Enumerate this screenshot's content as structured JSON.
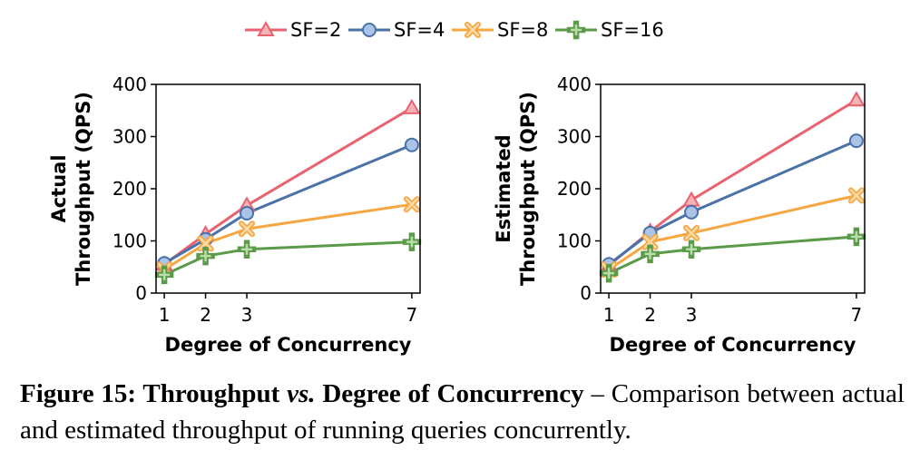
{
  "chart_data": [
    {
      "type": "line",
      "ylabel_lines": [
        "Actual",
        "Throughput (QPS)"
      ],
      "xlabel": "Degree of Concurrency",
      "x": [
        1,
        2,
        3,
        7
      ],
      "xticks": [
        "1",
        "2",
        "3",
        "7"
      ],
      "yticks": [
        "0",
        "100",
        "200",
        "300",
        "400"
      ],
      "ylim": [
        0,
        400
      ],
      "xlim": [
        0.8,
        7.2
      ],
      "series": [
        {
          "name": "SF=2",
          "values": [
            55,
            113,
            168,
            355
          ]
        },
        {
          "name": "SF=4",
          "values": [
            57,
            103,
            153,
            284
          ]
        },
        {
          "name": "SF=8",
          "values": [
            45,
            95,
            123,
            170
          ]
        },
        {
          "name": "SF=16",
          "values": [
            35,
            71,
            84,
            98
          ]
        }
      ]
    },
    {
      "type": "line",
      "ylabel_lines": [
        "Estimated",
        "Throughput (QPS)"
      ],
      "xlabel": "Degree of Concurrency",
      "x": [
        1,
        2,
        3,
        7
      ],
      "xticks": [
        "1",
        "2",
        "3",
        "7"
      ],
      "yticks": [
        "0",
        "100",
        "200",
        "300",
        "400"
      ],
      "ylim": [
        0,
        400
      ],
      "xlim": [
        0.8,
        7.2
      ],
      "series": [
        {
          "name": "SF=2",
          "values": [
            53,
            118,
            178,
            370
          ]
        },
        {
          "name": "SF=4",
          "values": [
            55,
            115,
            155,
            292
          ]
        },
        {
          "name": "SF=8",
          "values": [
            45,
            98,
            115,
            187
          ]
        },
        {
          "name": "SF=16",
          "values": [
            38,
            75,
            84,
            108
          ]
        }
      ]
    }
  ],
  "legend": {
    "placement": "top-center",
    "items": [
      {
        "label": "SF=2",
        "color": "#e8636f",
        "marker": "triangle"
      },
      {
        "label": "SF=4",
        "color": "#4a72a8",
        "marker": "circle"
      },
      {
        "label": "SF=8",
        "color": "#f5a742",
        "marker": "x-square"
      },
      {
        "label": "SF=16",
        "color": "#5b9a48",
        "marker": "plus"
      }
    ]
  },
  "series_style": {
    "SF=2": {
      "color": "#e8636f",
      "fill": "#f3b3b7",
      "marker": "triangle"
    },
    "SF=4": {
      "color": "#4a72a8",
      "fill": "#a9c4e6",
      "marker": "circle"
    },
    "SF=8": {
      "color": "#f5a742",
      "fill": "#fbd9a6",
      "marker": "x-square"
    },
    "SF=16": {
      "color": "#5b9a48",
      "fill": "#b9dca8",
      "marker": "plus"
    }
  },
  "caption": {
    "bold_start": "Figure 15: Throughput ",
    "italic_vs": "vs.",
    "bold_end": " Degree of Concurrency",
    "rest": " – Comparison between actual and estimated throughput of running queries concurrently."
  }
}
